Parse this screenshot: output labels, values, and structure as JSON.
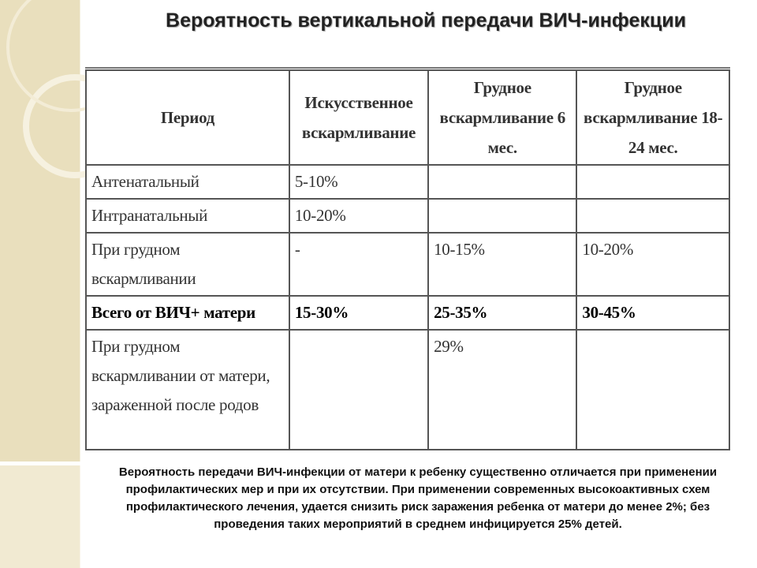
{
  "title": "Вероятность вертикальной передачи ВИЧ-инфекции",
  "table": {
    "header": [
      "Период",
      "Искусственное вскармливание",
      "Грудное вскармливание 6 мес.",
      "Грудное вскармливание 18-24 мес."
    ],
    "rows": [
      [
        "Антенатальный",
        "5-10%",
        null,
        null
      ],
      [
        "Интранатальный",
        "10-20%",
        null,
        null
      ],
      [
        "При грудном вскармливании",
        "-",
        "10-15%",
        "10-20%"
      ],
      [
        "Всего от ВИЧ+ матери",
        "15-30%",
        "25-35%",
        "30-45%"
      ],
      [
        "При грудном вскармливании от матери, зараженной после родов",
        null,
        "29%",
        null
      ]
    ]
  },
  "note": "Вероятность передачи ВИЧ-инфекции от матери к ребенку существенно отличается при применении профилактических мер и при их отсутствии. При применении современных высокоактивных схем профилактического лечения, удается снизить риск заражения ребенка от матери до менее 2%; без проведения таких мероприятий в среднем инфицируется 25% детей."
}
